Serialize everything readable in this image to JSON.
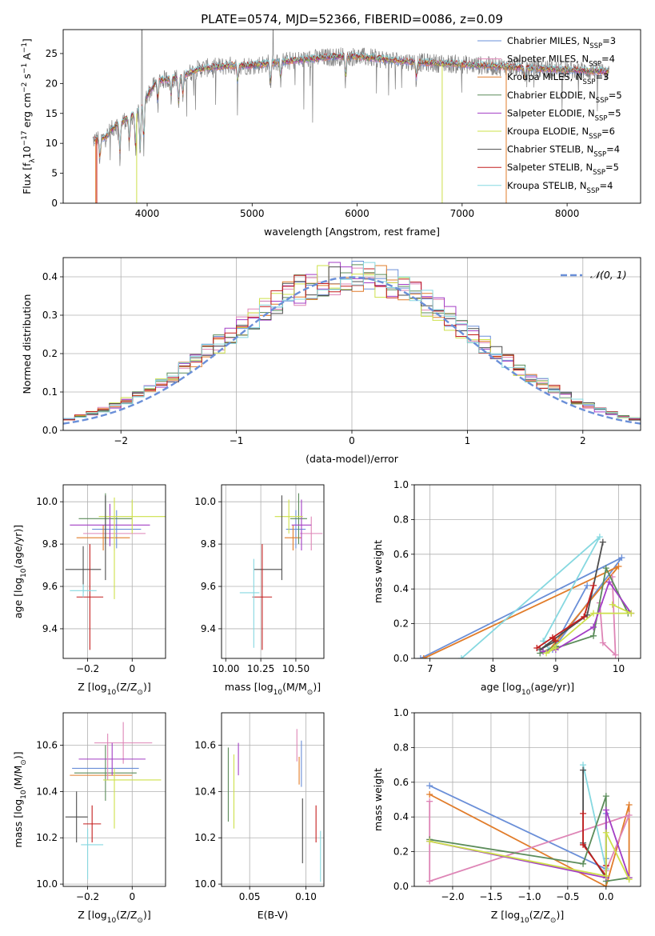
{
  "figure_title": "PLATE=0574, MJD=52366, FIBERID=0086, z=0.09",
  "colors": {
    "Chabrier MILES": "#6a8fd8",
    "Salpeter MILES": "#de85b6",
    "Kroupa MILES": "#e17c2a",
    "Chabrier ELODIE": "#5b8c5a",
    "Salpeter ELODIE": "#a33ec5",
    "Kroupa ELODIE": "#cde04a",
    "Chabrier STELIB": "#4d4d4d",
    "Salpeter STELIB": "#c41e1e",
    "Kroupa STELIB": "#86d8e0",
    "data": "#808080"
  },
  "chart_data": [
    {
      "id": "spectrum",
      "type": "line",
      "title": "PLATE=0574, MJD=52366, FIBERID=0086, z=0.09",
      "xlabel": "wavelength [Angstrom, rest frame]",
      "ylabel": "Flux [f",
      "ylabel_sub": "λ",
      "ylabel_rest": "10",
      "ylabel_exp": "−17",
      "ylabel_unit1": " erg cm",
      "ylabel_exp2": "−2",
      "ylabel_unit2": " s",
      "ylabel_exp3": "−1",
      "ylabel_unit3": " A",
      "ylabel_exp4": "−1",
      "ylabel_end": "]",
      "xlim": [
        3200,
        8700
      ],
      "ylim": [
        0,
        29
      ],
      "xticks": [
        4000,
        5000,
        6000,
        7000,
        8000
      ],
      "yticks": [
        0,
        5,
        10,
        15,
        20,
        25
      ],
      "continuum": [
        [
          3480,
          10.5
        ],
        [
          3600,
          11
        ],
        [
          3700,
          13
        ],
        [
          3800,
          14
        ],
        [
          3900,
          15
        ],
        [
          4000,
          18
        ],
        [
          4100,
          20.5
        ],
        [
          4300,
          21
        ],
        [
          4500,
          22.5
        ],
        [
          4800,
          23
        ],
        [
          5000,
          23
        ],
        [
          5200,
          23.5
        ],
        [
          5500,
          24
        ],
        [
          5800,
          24.5
        ],
        [
          6000,
          24.5
        ],
        [
          6300,
          24
        ],
        [
          6600,
          23.5
        ],
        [
          6900,
          23.3
        ],
        [
          7200,
          23
        ],
        [
          7500,
          22.7
        ],
        [
          7800,
          22.4
        ],
        [
          8100,
          22.2
        ],
        [
          8400,
          22
        ]
      ],
      "absorption_features": [
        [
          3550,
          4
        ],
        [
          3740,
          6
        ],
        [
          3830,
          5
        ],
        [
          3890,
          7
        ],
        [
          3933,
          9
        ],
        [
          3968,
          8
        ],
        [
          4102,
          4
        ],
        [
          4227,
          3
        ],
        [
          4300,
          5
        ],
        [
          4340,
          4
        ],
        [
          4861,
          3
        ],
        [
          5175,
          4
        ],
        [
          5270,
          3
        ],
        [
          5890,
          4
        ],
        [
          6563,
          3
        ],
        [
          7600,
          2
        ],
        [
          8500,
          2
        ]
      ],
      "sky_spikes": [
        [
          5577,
          -6
        ],
        [
          6300,
          -3
        ],
        [
          6364,
          -3
        ],
        [
          5200,
          5
        ],
        [
          3950,
          9
        ]
      ],
      "legend": [
        {
          "label": "Chabrier MILES, N",
          "sub": "SSP",
          "suffix": "=3"
        },
        {
          "label": "Salpeter MILES, N",
          "sub": "SSP",
          "suffix": "=4"
        },
        {
          "label": "Kroupa MILES, N",
          "sub": "SSP",
          "suffix": "=3"
        },
        {
          "label": "Chabrier ELODIE, N",
          "sub": "SSP",
          "suffix": "=5"
        },
        {
          "label": "Salpeter ELODIE, N",
          "sub": "SSP",
          "suffix": "=5"
        },
        {
          "label": "Kroupa ELODIE, N",
          "sub": "SSP",
          "suffix": "=6"
        },
        {
          "label": "Chabrier STELIB, N",
          "sub": "SSP",
          "suffix": "=4"
        },
        {
          "label": "Salpeter STELIB, N",
          "sub": "SSP",
          "suffix": "=5"
        },
        {
          "label": "Kroupa STELIB, N",
          "sub": "SSP",
          "suffix": "=4"
        }
      ],
      "legend_placement": "top-right"
    },
    {
      "id": "residuals",
      "type": "line",
      "xlabel": "(data-model)/error",
      "ylabel": "Normed distribution",
      "xlim": [
        -2.5,
        2.5
      ],
      "ylim": [
        0,
        0.45
      ],
      "xticks": [
        -2,
        -1,
        0,
        1,
        2
      ],
      "yticks": [
        0.0,
        0.1,
        0.2,
        0.3,
        0.4
      ],
      "grid": true,
      "bin_width": 0.1,
      "curve_label": "𝒩(0, 1)",
      "legend_placement": "top-right"
    },
    {
      "id": "z-age",
      "type": "scatter",
      "xlabel": "Z [log",
      "xlabel_sub": "10",
      "xlabel_rest": "(Z/Z",
      "xlabel_sub2": "⊙",
      "xlabel_end": ")]",
      "ylabel": "age  [log",
      "ylabel_sub": "10",
      "ylabel_rest": "(age/yr)]",
      "xlim": [
        -0.31,
        0.15
      ],
      "ylim": [
        9.26,
        10.08
      ],
      "xticks": [
        -0.2,
        0.0
      ],
      "yticks": [
        9.4,
        9.6,
        9.8,
        10.0
      ],
      "grid": true,
      "points": [
        {
          "name": "Chabrier MILES",
          "x": -0.07,
          "xerr": 0.11,
          "y": 9.87,
          "yerr": 0.09
        },
        {
          "name": "Salpeter MILES",
          "x": -0.08,
          "xerr": 0.14,
          "y": 9.85,
          "yerr": 0.08
        },
        {
          "name": "Kroupa MILES",
          "x": -0.13,
          "xerr": 0.12,
          "y": 9.83,
          "yerr": 0.06
        },
        {
          "name": "Chabrier ELODIE",
          "x": -0.12,
          "xerr": 0.12,
          "y": 9.92,
          "yerr": 0.12
        },
        {
          "name": "Salpeter ELODIE",
          "x": -0.1,
          "xerr": 0.18,
          "y": 9.89,
          "yerr": 0.1
        },
        {
          "name": "Kroupa ELODIE",
          "x": 0.0,
          "xerr": 0.15,
          "y": 9.93,
          "yerr": 0.08
        },
        {
          "name": "Chabrier STELIB",
          "x": -0.22,
          "xerr": 0.08,
          "y": 9.68,
          "yerr": 0.11
        },
        {
          "name": "Salpeter STELIB",
          "x": -0.19,
          "xerr": 0.06,
          "y": 9.55,
          "yerr": 0.25
        },
        {
          "name": "Kroupa STELIB",
          "x": -0.22,
          "xerr": 0.06,
          "y": 9.58,
          "yerr": 0.03
        },
        {
          "name": "Chabrier STELIB v",
          "x": -0.12,
          "xerr": 0,
          "y": 9.83,
          "yerr": 0.2
        },
        {
          "name": "Kroupa ELODIE v",
          "x": -0.08,
          "xerr": 0,
          "y": 9.78,
          "yerr": 0.24
        }
      ]
    },
    {
      "id": "mass-age",
      "type": "scatter",
      "xlabel": "mass [log",
      "xlabel_sub": "10",
      "xlabel_rest": "(M/M",
      "xlabel_sub2": "⊙",
      "xlabel_end": ")]",
      "xlim": [
        9.97,
        10.7
      ],
      "ylim": [
        9.26,
        10.08
      ],
      "xticks": [
        10.0,
        10.25,
        10.5
      ],
      "xtick_labels": [
        "10.00",
        "10.25",
        "10.50"
      ],
      "yticks": [
        9.4,
        9.6,
        9.8,
        10.0
      ],
      "grid": true,
      "points": [
        {
          "name": "Chabrier MILES",
          "x": 10.5,
          "xerr": 0.07,
          "y": 9.87,
          "yerr": 0.09
        },
        {
          "name": "Salpeter MILES",
          "x": 10.61,
          "xerr": 0.08,
          "y": 9.85,
          "yerr": 0.08
        },
        {
          "name": "Kroupa MILES",
          "x": 10.48,
          "xerr": 0.06,
          "y": 9.83,
          "yerr": 0.06
        },
        {
          "name": "Chabrier ELODIE",
          "x": 10.52,
          "xerr": 0.06,
          "y": 9.92,
          "yerr": 0.12
        },
        {
          "name": "Salpeter ELODIE",
          "x": 10.54,
          "xerr": 0.07,
          "y": 9.89,
          "yerr": 0.12
        },
        {
          "name": "Kroupa ELODIE",
          "x": 10.45,
          "xerr": 0.1,
          "y": 9.93,
          "yerr": 0.08
        },
        {
          "name": "Chabrier STELIB",
          "x": 10.3,
          "xerr": 0.1,
          "y": 9.68,
          "yerr": 0.0
        },
        {
          "name": "Salpeter STELIB",
          "x": 10.26,
          "xerr": 0.07,
          "y": 9.55,
          "yerr": 0.25
        },
        {
          "name": "Kroupa STELIB",
          "x": 10.17,
          "xerr": 0.07,
          "y": 9.57,
          "yerr": 0.0
        },
        {
          "name": "Kroupa STELIB v",
          "x": 10.2,
          "xerr": 0,
          "y": 9.52,
          "yerr": 0.21
        },
        {
          "name": "Chabrier STELIB v",
          "x": 10.4,
          "xerr": 0,
          "y": 9.83,
          "yerr": 0.2
        }
      ]
    },
    {
      "id": "age-weight",
      "type": "line",
      "xlabel": "age  [log",
      "xlabel_sub": "10",
      "xlabel_rest": "(age/yr)]",
      "ylabel": "mass weight",
      "xlim": [
        6.75,
        10.35
      ],
      "ylim": [
        0,
        1.0
      ],
      "xticks": [
        7,
        8,
        9,
        10
      ],
      "yticks": [
        0.0,
        0.2,
        0.4,
        0.6,
        0.8,
        1.0
      ],
      "grid": true,
      "series": [
        {
          "color": "Chabrier MILES",
          "x": [
            6.85,
            10.05,
            8.95,
            9.5
          ],
          "y": [
            0.0,
            0.58,
            0.05,
            0.42
          ]
        },
        {
          "color": "Kroupa MILES",
          "x": [
            6.9,
            10.0,
            8.9
          ],
          "y": [
            0.0,
            0.53,
            0.05
          ]
        },
        {
          "color": "Salpeter MILES",
          "x": [
            9.9,
            9.95,
            9.75,
            9.7
          ],
          "y": [
            0.47,
            0.02,
            0.09,
            0.32
          ]
        },
        {
          "color": "Kroupa STELIB",
          "x": [
            7.5,
            9.7,
            8.8,
            8.9
          ],
          "y": [
            0.0,
            0.7,
            0.1,
            0.05
          ]
        },
        {
          "color": "Chabrier STELIB",
          "x": [
            9.75,
            9.5,
            8.75,
            9.0
          ],
          "y": [
            0.67,
            0.25,
            0.05,
            0.1
          ]
        },
        {
          "color": "Salpeter STELIB",
          "x": [
            9.6,
            9.45,
            8.7,
            8.95,
            9.0
          ],
          "y": [
            0.42,
            0.24,
            0.06,
            0.12,
            0.1
          ]
        },
        {
          "color": "Chabrier ELODIE",
          "x": [
            10.15,
            9.8,
            9.6,
            8.75,
            9.0
          ],
          "y": [
            0.26,
            0.52,
            0.13,
            0.03,
            0.07
          ]
        },
        {
          "color": "Salpeter ELODIE",
          "x": [
            10.2,
            9.85,
            9.6,
            9.0,
            8.8
          ],
          "y": [
            0.26,
            0.44,
            0.18,
            0.05,
            0.04
          ]
        },
        {
          "color": "Kroupa ELODIE",
          "x": [
            9.9,
            10.2,
            9.6,
            8.85,
            9.0
          ],
          "y": [
            0.31,
            0.26,
            0.26,
            0.03,
            0.06
          ]
        }
      ]
    },
    {
      "id": "z-mass",
      "type": "scatter",
      "xlabel": "Z [log",
      "xlabel_sub": "10",
      "xlabel_rest": "(Z/Z",
      "xlabel_sub2": "⊙",
      "xlabel_end": ")]",
      "ylabel": "mass [log",
      "ylabel_sub": "10",
      "ylabel_rest": "(M/M",
      "ylabel_sub2": "⊙",
      "ylabel_end": ")]",
      "xlim": [
        -0.31,
        0.15
      ],
      "ylim": [
        9.99,
        10.74
      ],
      "xticks": [
        -0.2,
        0.0
      ],
      "yticks": [
        10.0,
        10.2,
        10.4,
        10.6
      ],
      "grid": true,
      "points": [
        {
          "name": "Chabrier MILES",
          "x": -0.12,
          "xerr": 0.15,
          "y": 10.5,
          "yerr": 0.0
        },
        {
          "name": "Salpeter MILES",
          "x": -0.04,
          "xerr": 0.13,
          "y": 10.61,
          "yerr": 0.09
        },
        {
          "name": "Kroupa MILES",
          "x": -0.14,
          "xerr": 0.14,
          "y": 10.47,
          "yerr": 0.0
        },
        {
          "name": "Chabrier ELODIE",
          "x": -0.12,
          "xerr": 0.14,
          "y": 10.48,
          "yerr": 0.12
        },
        {
          "name": "Salpeter ELODIE",
          "x": -0.09,
          "xerr": 0.15,
          "y": 10.54,
          "yerr": 0.07
        },
        {
          "name": "Kroupa ELODIE",
          "x": 0.0,
          "xerr": 0.13,
          "y": 10.45,
          "yerr": 0.0
        },
        {
          "name": "Chabrier STELIB",
          "x": -0.25,
          "xerr": 0.05,
          "y": 10.29,
          "yerr": 0.11
        },
        {
          "name": "Salpeter STELIB",
          "x": -0.18,
          "xerr": 0.04,
          "y": 10.26,
          "yerr": 0.08
        },
        {
          "name": "Kroupa STELIB",
          "x": -0.18,
          "xerr": 0.05,
          "y": 10.17,
          "yerr": 0.0
        },
        {
          "name": "Kroupa STELIB v",
          "x": -0.2,
          "xerr": 0,
          "y": 10.13,
          "yerr": 0.11
        },
        {
          "name": "Kroupa ELODIE v",
          "x": -0.08,
          "xerr": 0,
          "y": 10.37,
          "yerr": 0.13
        },
        {
          "name": "Salpeter MILES v",
          "x": -0.11,
          "xerr": 0,
          "y": 10.55,
          "yerr": 0.1
        }
      ]
    },
    {
      "id": "ebv-mass",
      "type": "scatter",
      "xlabel": "E(B-V)",
      "xlim": [
        0.025,
        0.116
      ],
      "ylim": [
        9.99,
        10.74
      ],
      "xticks": [
        0.05,
        0.1
      ],
      "xtick_labels": [
        "0.05",
        "0.10"
      ],
      "yticks": [
        10.0,
        10.2,
        10.4,
        10.6
      ],
      "grid": true,
      "points": [
        {
          "name": "Chabrier ELODIE",
          "x": 0.031,
          "y": 10.43,
          "yerr": 0.16
        },
        {
          "name": "Kroupa ELODIE",
          "x": 0.036,
          "y": 10.4,
          "yerr": 0.16
        },
        {
          "name": "Salpeter ELODIE",
          "x": 0.04,
          "y": 10.54,
          "yerr": 0.07
        },
        {
          "name": "Salpeter MILES",
          "x": 0.092,
          "y": 10.6,
          "yerr": 0.07
        },
        {
          "name": "Kroupa MILES",
          "x": 0.094,
          "y": 10.49,
          "yerr": 0.06
        },
        {
          "name": "Chabrier MILES",
          "x": 0.096,
          "y": 10.52,
          "yerr": 0.1
        },
        {
          "name": "Chabrier STELIB",
          "x": 0.097,
          "y": 10.23,
          "yerr": 0.14
        },
        {
          "name": "Salpeter STELIB",
          "x": 0.109,
          "y": 10.26,
          "yerr": 0.08
        },
        {
          "name": "Kroupa STELIB",
          "x": 0.113,
          "y": 10.12,
          "yerr": 0.11
        }
      ]
    },
    {
      "id": "z-weight",
      "type": "line",
      "xlabel": "Z [log",
      "xlabel_sub": "10",
      "xlabel_rest": "(Z/Z",
      "xlabel_sub2": "⊙",
      "xlabel_end": ")]",
      "ylabel": "mass weight",
      "xlim": [
        -2.5,
        0.45
      ],
      "ylim": [
        0,
        1.0
      ],
      "xticks": [
        -2.0,
        -1.5,
        -1.0,
        -0.5,
        0.0
      ],
      "xtick_labels": [
        "−2.0",
        "−1.5",
        "−1.0",
        "−0.5",
        "0.0"
      ],
      "yticks": [
        0.0,
        0.2,
        0.4,
        0.6,
        0.8,
        1.0
      ],
      "grid": true,
      "series": [
        {
          "color": "Chabrier MILES",
          "x": [
            -2.3,
            0.0,
            0.0,
            0.0
          ],
          "y": [
            0.58,
            0.1,
            0.16,
            0.42
          ]
        },
        {
          "color": "Kroupa MILES",
          "x": [
            -2.3,
            0.0,
            0.3,
            0.3
          ],
          "y": [
            0.53,
            0.0,
            0.47,
            0.05
          ]
        },
        {
          "color": "Salpeter MILES",
          "x": [
            -2.3,
            -2.3,
            0.3,
            0.0
          ],
          "y": [
            0.49,
            0.03,
            0.41,
            0.09
          ]
        },
        {
          "color": "Kroupa STELIB",
          "x": [
            -0.3,
            0.0,
            0.0
          ],
          "y": [
            0.7,
            0.1,
            0.05
          ]
        },
        {
          "color": "Chabrier STELIB",
          "x": [
            -0.3,
            -0.3,
            0.0
          ],
          "y": [
            0.67,
            0.25,
            0.05
          ]
        },
        {
          "color": "Salpeter STELIB",
          "x": [
            -0.3,
            -0.3,
            0.0,
            0.0
          ],
          "y": [
            0.42,
            0.24,
            0.06,
            0.12
          ]
        },
        {
          "color": "Chabrier ELODIE",
          "x": [
            -2.3,
            -0.3,
            0.0,
            0.0,
            0.3
          ],
          "y": [
            0.27,
            0.13,
            0.52,
            0.03,
            0.05
          ]
        },
        {
          "color": "Salpeter ELODIE",
          "x": [
            -2.3,
            0.0,
            0.0,
            0.3
          ],
          "y": [
            0.26,
            0.05,
            0.44,
            0.05
          ]
        },
        {
          "color": "Kroupa ELODIE",
          "x": [
            -2.3,
            0.0,
            0.0,
            0.3
          ],
          "y": [
            0.26,
            0.06,
            0.31,
            0.04
          ]
        }
      ]
    }
  ]
}
